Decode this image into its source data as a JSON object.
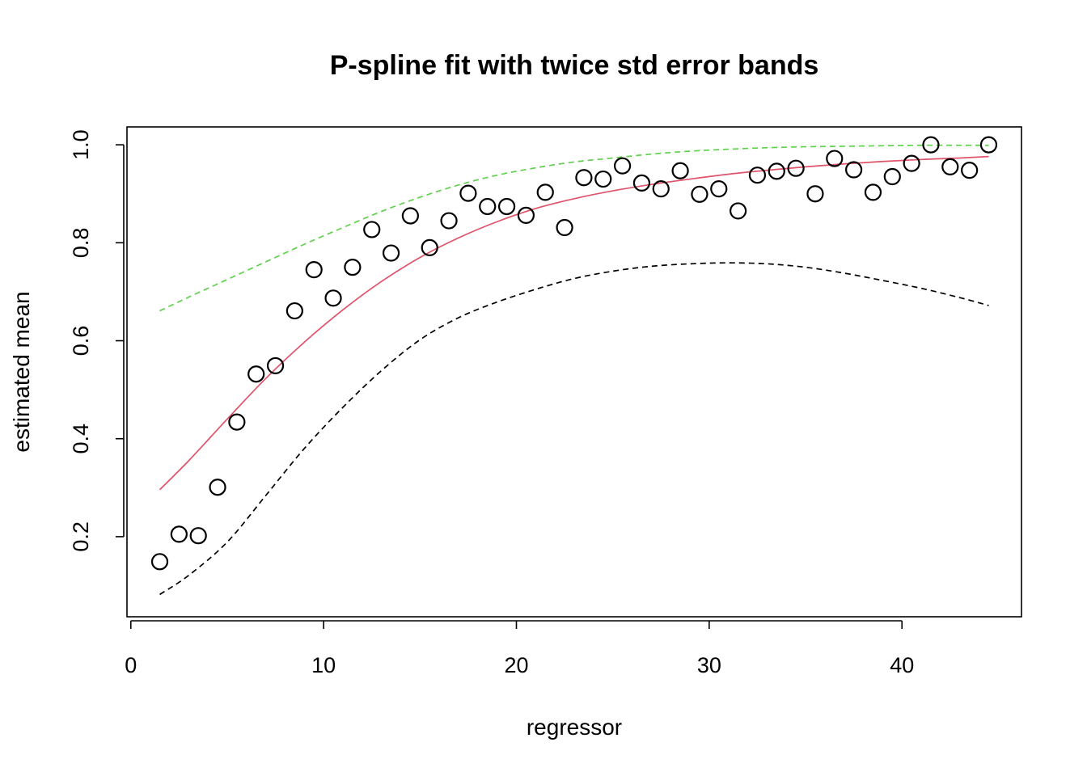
{
  "chart_data": {
    "type": "scatter",
    "title": "P-spline fit with twice std error bands",
    "xlabel": "regressor",
    "ylabel": "estimated mean",
    "xlim": [
      -0.2,
      46.2
    ],
    "ylim": [
      0.0365,
      1.0365
    ],
    "x_ticks": [
      {
        "value": 0,
        "label": "0"
      },
      {
        "value": 10,
        "label": "10"
      },
      {
        "value": 20,
        "label": "20"
      },
      {
        "value": 30,
        "label": "30"
      },
      {
        "value": 40,
        "label": "40"
      }
    ],
    "y_ticks": [
      {
        "value": 0.2,
        "label": "0.2"
      },
      {
        "value": 0.4,
        "label": "0.4"
      },
      {
        "value": 0.6,
        "label": "0.6"
      },
      {
        "value": 0.8,
        "label": "0.8"
      },
      {
        "value": 1.0,
        "label": "1.0"
      }
    ],
    "points": {
      "x": [
        1.5,
        2.5,
        3.5,
        4.5,
        5.5,
        6.5,
        7.5,
        8.5,
        9.5,
        10.5,
        11.5,
        12.5,
        13.5,
        14.5,
        15.5,
        16.5,
        17.5,
        18.5,
        19.5,
        20.5,
        21.5,
        22.5,
        23.5,
        24.5,
        25.5,
        26.5,
        27.5,
        28.5,
        29.5,
        30.5,
        31.5,
        32.5,
        33.5,
        34.5,
        35.5,
        36.5,
        37.5,
        38.5,
        39.5,
        40.5,
        41.5,
        42.5,
        43.5,
        44.5
      ],
      "y": [
        0.149,
        0.205,
        0.202,
        0.301,
        0.434,
        0.532,
        0.549,
        0.661,
        0.745,
        0.687,
        0.75,
        0.827,
        0.779,
        0.855,
        0.79,
        0.845,
        0.901,
        0.874,
        0.874,
        0.856,
        0.903,
        0.831,
        0.933,
        0.93,
        0.957,
        0.922,
        0.91,
        0.947,
        0.899,
        0.91,
        0.865,
        0.938,
        0.946,
        0.952,
        0.9,
        0.972,
        0.949,
        0.903,
        0.935,
        0.962,
        1.0,
        0.955,
        0.948,
        1.0
      ],
      "color": "#000000"
    },
    "series": [
      {
        "role": "fit",
        "line_style": "solid",
        "color": "#DF536B",
        "x": [
          1.5,
          3,
          5,
          7,
          9,
          11,
          13,
          15,
          17,
          19,
          21,
          23,
          25,
          27,
          29,
          31,
          33,
          35,
          37,
          39,
          41,
          43,
          44.5
        ],
        "y": [
          0.296,
          0.355,
          0.44,
          0.523,
          0.597,
          0.663,
          0.721,
          0.77,
          0.81,
          0.843,
          0.87,
          0.89,
          0.906,
          0.919,
          0.93,
          0.94,
          0.948,
          0.955,
          0.961,
          0.966,
          0.97,
          0.973,
          0.976
        ]
      },
      {
        "role": "upper-band",
        "line_style": "dashed",
        "color": "#61D04F",
        "x": [
          1.5,
          3,
          5,
          7,
          9,
          11,
          13,
          15,
          17,
          19,
          21,
          23,
          25,
          27,
          29,
          31,
          33,
          35,
          37,
          39,
          41,
          43,
          44.5
        ],
        "y": [
          0.661,
          0.689,
          0.725,
          0.761,
          0.797,
          0.831,
          0.864,
          0.893,
          0.918,
          0.938,
          0.953,
          0.965,
          0.973,
          0.981,
          0.987,
          0.991,
          0.994,
          0.996,
          0.997,
          0.998,
          0.999,
          0.999,
          0.999
        ]
      },
      {
        "role": "lower-band",
        "line_style": "dashed",
        "color": "#000000",
        "x": [
          1.5,
          3,
          5,
          7,
          9,
          11,
          13,
          15,
          17,
          19,
          21,
          23,
          25,
          27,
          29,
          31,
          33,
          35,
          37,
          39,
          41,
          43,
          44.5
        ],
        "y": [
          0.082,
          0.121,
          0.189,
          0.284,
          0.38,
          0.464,
          0.539,
          0.602,
          0.647,
          0.679,
          0.705,
          0.727,
          0.742,
          0.752,
          0.757,
          0.759,
          0.757,
          0.75,
          0.738,
          0.723,
          0.707,
          0.688,
          0.672
        ]
      }
    ]
  }
}
